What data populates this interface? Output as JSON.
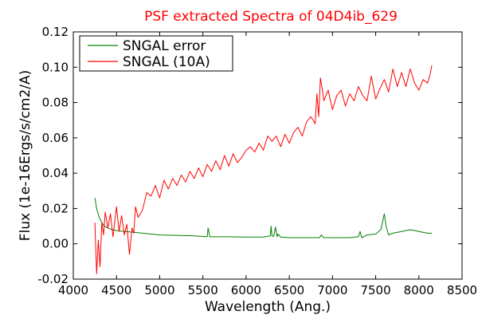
{
  "chart_data": {
    "type": "line",
    "title": "PSF extracted Spectra of 04D4ib_629",
    "xlabel": "Wavelength (Ang.)",
    "ylabel": "Flux (1e-16Ergs/s/cm2/A)",
    "xlim": [
      4000,
      8500
    ],
    "ylim": [
      -0.02,
      0.12
    ],
    "xticks": [
      4000,
      4500,
      5000,
      5500,
      6000,
      6500,
      7000,
      7500,
      8000,
      8500
    ],
    "xtick_labels": [
      "4000",
      "4500",
      "5000",
      "5500",
      "6000",
      "6500",
      "7000",
      "7500",
      "8000",
      "8500"
    ],
    "yticks": [
      -0.02,
      0.0,
      0.02,
      0.04,
      0.06,
      0.08,
      0.1,
      0.12
    ],
    "ytick_labels": [
      "-0.02",
      "0.00",
      "0.02",
      "0.04",
      "0.06",
      "0.08",
      "0.10",
      "0.12"
    ],
    "grid": false,
    "legend_position": "top-left",
    "series": [
      {
        "name": "SNGAL error",
        "color": "#008000",
        "x": [
          4250,
          4270,
          4300,
          4330,
          4360,
          4400,
          4450,
          4500,
          4550,
          4600,
          4650,
          4700,
          4800,
          4900,
          5000,
          5200,
          5400,
          5550,
          5560,
          5580,
          5600,
          5800,
          6000,
          6200,
          6280,
          6290,
          6300,
          6320,
          6340,
          6360,
          6370,
          6400,
          6500,
          6700,
          6850,
          6870,
          6900,
          7000,
          7200,
          7300,
          7320,
          7340,
          7400,
          7500,
          7560,
          7600,
          7620,
          7650,
          7700,
          7800,
          7900,
          8000,
          8100,
          8150
        ],
        "values": [
          0.026,
          0.02,
          0.015,
          0.012,
          0.01,
          0.009,
          0.008,
          0.0075,
          0.0072,
          0.007,
          0.0068,
          0.0065,
          0.006,
          0.0055,
          0.005,
          0.0048,
          0.0045,
          0.004,
          0.009,
          0.004,
          0.004,
          0.004,
          0.0038,
          0.0038,
          0.0045,
          0.01,
          0.0045,
          0.0042,
          0.0095,
          0.004,
          0.0055,
          0.0038,
          0.0035,
          0.0035,
          0.0035,
          0.005,
          0.0035,
          0.0035,
          0.0035,
          0.004,
          0.007,
          0.0035,
          0.005,
          0.0055,
          0.008,
          0.017,
          0.01,
          0.005,
          0.006,
          0.007,
          0.008,
          0.007,
          0.006,
          0.006
        ]
      },
      {
        "name": "SNGAL (10A)",
        "color": "#ff0000",
        "x": [
          4250,
          4270,
          4290,
          4310,
          4330,
          4350,
          4370,
          4400,
          4430,
          4460,
          4500,
          4530,
          4560,
          4590,
          4620,
          4650,
          4680,
          4700,
          4720,
          4750,
          4800,
          4850,
          4900,
          4950,
          5000,
          5050,
          5100,
          5150,
          5200,
          5250,
          5300,
          5350,
          5400,
          5450,
          5500,
          5550,
          5600,
          5650,
          5700,
          5750,
          5800,
          5850,
          5900,
          5950,
          6000,
          6050,
          6100,
          6150,
          6200,
          6250,
          6300,
          6350,
          6400,
          6450,
          6500,
          6550,
          6600,
          6650,
          6700,
          6750,
          6800,
          6820,
          6840,
          6860,
          6880,
          6900,
          6950,
          7000,
          7050,
          7100,
          7150,
          7200,
          7250,
          7300,
          7350,
          7400,
          7450,
          7500,
          7550,
          7600,
          7650,
          7700,
          7750,
          7800,
          7850,
          7900,
          7950,
          8000,
          8050,
          8100,
          8130,
          8150
        ],
        "values": [
          0.012,
          -0.017,
          0.002,
          -0.013,
          0.012,
          0.005,
          0.018,
          0.009,
          0.017,
          0.004,
          0.021,
          0.007,
          0.016,
          0.005,
          0.011,
          -0.006,
          0.009,
          0.006,
          0.021,
          0.015,
          0.019,
          0.029,
          0.027,
          0.033,
          0.026,
          0.036,
          0.031,
          0.037,
          0.033,
          0.039,
          0.035,
          0.041,
          0.037,
          0.043,
          0.038,
          0.045,
          0.041,
          0.047,
          0.042,
          0.05,
          0.044,
          0.051,
          0.046,
          0.049,
          0.053,
          0.055,
          0.052,
          0.057,
          0.053,
          0.061,
          0.058,
          0.061,
          0.055,
          0.062,
          0.057,
          0.063,
          0.066,
          0.061,
          0.069,
          0.072,
          0.068,
          0.085,
          0.072,
          0.094,
          0.088,
          0.081,
          0.087,
          0.076,
          0.084,
          0.087,
          0.078,
          0.085,
          0.081,
          0.089,
          0.084,
          0.081,
          0.095,
          0.082,
          0.088,
          0.093,
          0.086,
          0.099,
          0.089,
          0.097,
          0.089,
          0.099,
          0.091,
          0.087,
          0.093,
          0.091,
          0.096,
          0.101
        ]
      }
    ]
  }
}
